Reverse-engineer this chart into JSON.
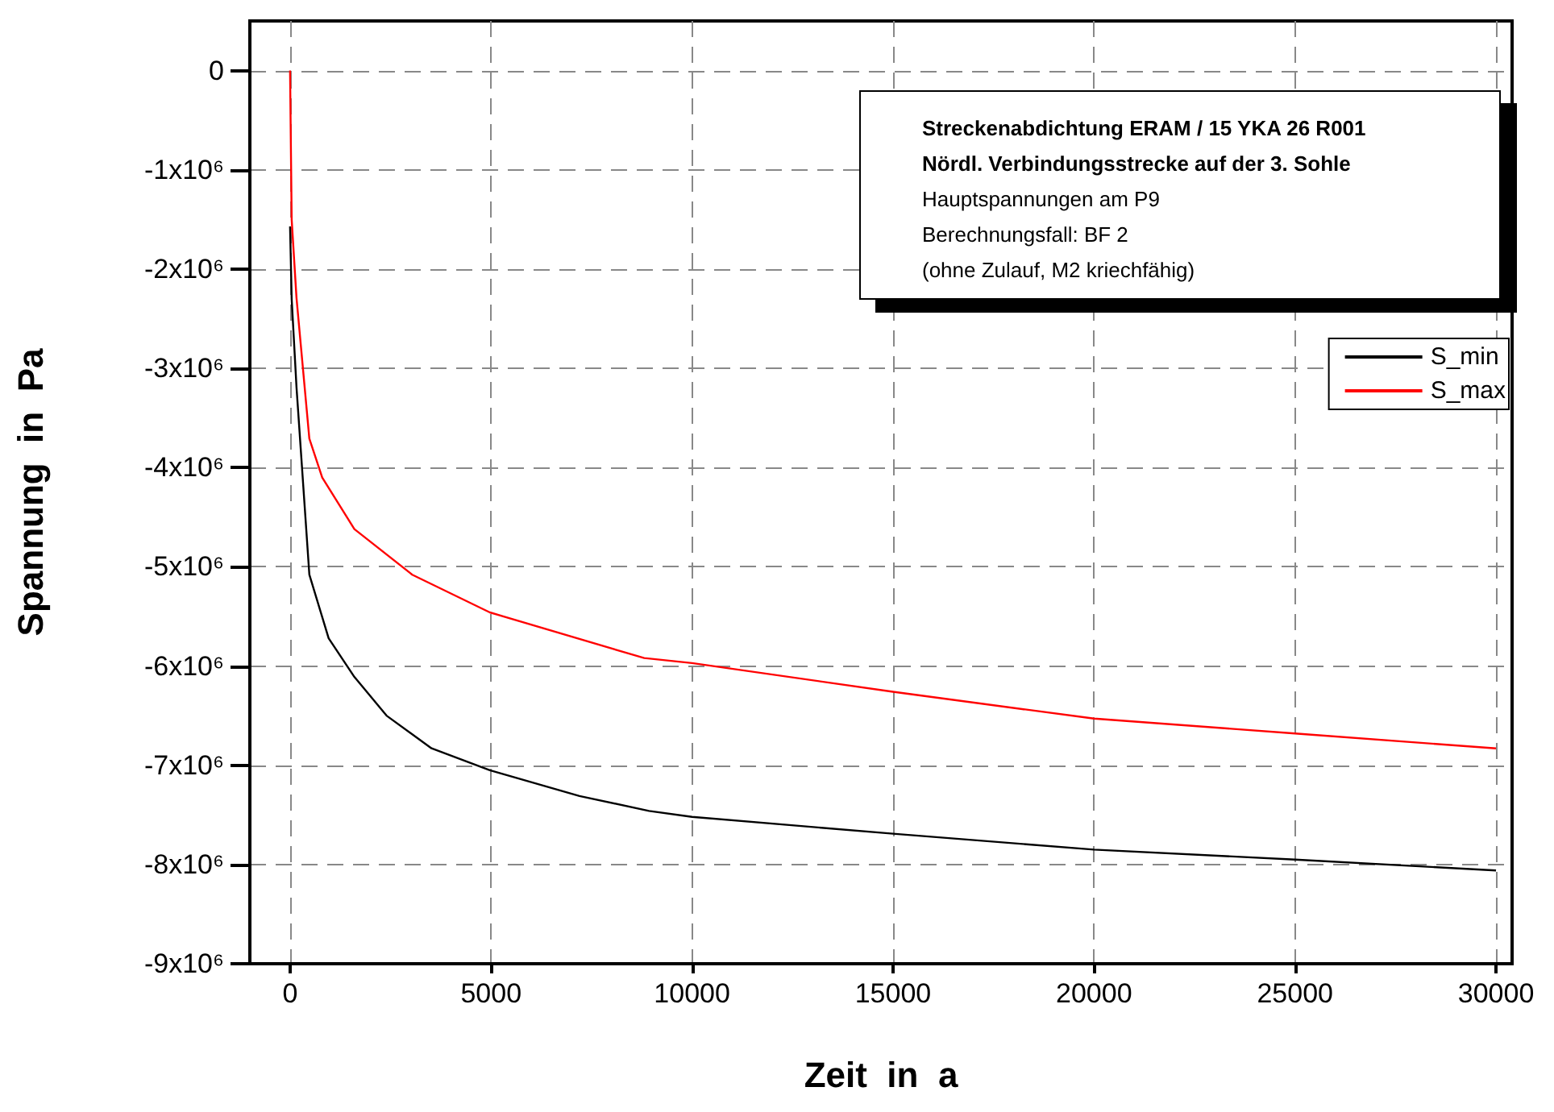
{
  "chart_data": {
    "type": "line",
    "xlabel": "Zeit  in  a",
    "ylabel": "Spannung  in  Pa",
    "annotations": [
      "Streckenabdichtung ERAM / 15 YKA 26 R001",
      "Nördl. Verbindungsstrecke auf der  3. Sohle",
      "Hauptspannungen am P9",
      "Berechnungsfall: BF 2",
      "(ohne Zulauf, M2 kriechfähig)"
    ],
    "series": [
      {
        "name": "S_min",
        "color": "#000000",
        "x": [
          0,
          40,
          160,
          480,
          960,
          1600,
          2400,
          3520,
          4970,
          7200,
          8930,
          10000,
          15000,
          20000,
          25000,
          30000
        ],
        "values": [
          -1570000,
          -2300000,
          -3190000,
          -5080000,
          -5720000,
          -6110000,
          -6500000,
          -6830000,
          -7050000,
          -7310000,
          -7460000,
          -7520000,
          -7690000,
          -7850000,
          -7950000,
          -8060000
        ]
      },
      {
        "name": "S_max",
        "color": "#ff0000",
        "x": [
          0,
          40,
          160,
          480,
          800,
          1600,
          3040,
          4970,
          8810,
          10000,
          15000,
          20000,
          25000,
          30000
        ],
        "values": [
          0,
          -1500000,
          -2290000,
          -3710000,
          -4100000,
          -4620000,
          -5080000,
          -5460000,
          -5920000,
          -5970000,
          -6260000,
          -6530000,
          -6680000,
          -6830000
        ]
      }
    ],
    "xlim": [
      -1000,
      30400
    ],
    "xticks": [
      0,
      5000,
      10000,
      15000,
      20000,
      25000,
      30000
    ],
    "ylim": [
      -9000000,
      500000
    ],
    "yticks": [
      0,
      {
        "value": -1000000,
        "label": "-1x10⁶"
      },
      {
        "value": -2000000,
        "label": "-2x10⁶"
      },
      {
        "value": -3000000,
        "label": "-3x10⁶"
      },
      {
        "value": -4000000,
        "label": "-4x10⁶"
      },
      {
        "value": -5000000,
        "label": "-5x10⁶"
      },
      {
        "value": -6000000,
        "label": "-6x10⁶"
      },
      {
        "value": -7000000,
        "label": "-7x10⁶"
      },
      {
        "value": -8000000,
        "label": "-8x10⁶"
      },
      {
        "value": -9000000,
        "label": "-9x10⁶"
      }
    ],
    "grid": true,
    "legend": "top right",
    "line_style": "solid",
    "marker": "none"
  }
}
